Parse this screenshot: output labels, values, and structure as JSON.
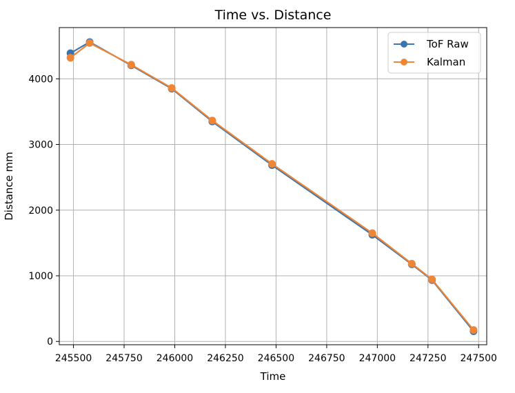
{
  "chart_data": {
    "type": "line",
    "title": "Time vs. Distance",
    "xlabel": "Time",
    "ylabel": "Distance mm",
    "xlim": [
      245430,
      247540
    ],
    "ylim": [
      -50,
      4780
    ],
    "xticks": [
      245500,
      245750,
      246000,
      246250,
      246500,
      246750,
      247000,
      247250,
      247500
    ],
    "yticks": [
      0,
      1000,
      2000,
      3000,
      4000
    ],
    "grid": true,
    "legend_position": "top-right",
    "series": [
      {
        "name": "ToF Raw",
        "color": "#3b75af",
        "marker": "circle",
        "x": [
          245485,
          245580,
          245785,
          245985,
          246185,
          246480,
          246975,
          247170,
          247270,
          247475
        ],
        "y": [
          4390,
          4560,
          4205,
          3850,
          3350,
          2685,
          1625,
          1175,
          935,
          155
        ]
      },
      {
        "name": "Kalman",
        "color": "#ef8636",
        "marker": "circle",
        "x": [
          245485,
          245580,
          245785,
          245985,
          246185,
          246480,
          246975,
          247170,
          247270,
          247475
        ],
        "y": [
          4320,
          4545,
          4215,
          3860,
          3365,
          2705,
          1650,
          1185,
          945,
          175
        ]
      }
    ]
  }
}
